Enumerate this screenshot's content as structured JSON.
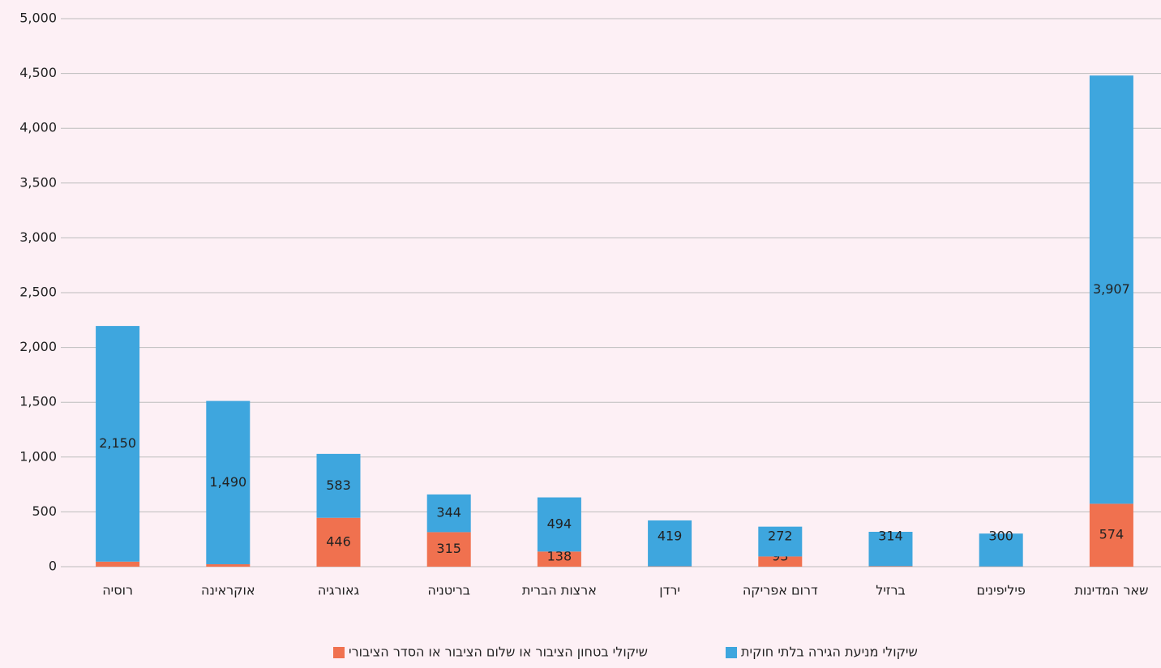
{
  "chart_data": {
    "type": "stacked_bar",
    "categories": [
      "רוסיה",
      "אוקראינה",
      "גאורגיה",
      "בריטניה",
      "ארצות הברית",
      "ירדן",
      "דרום אפריקה",
      "ברזיל",
      "פיליפינים",
      "שאר המדינות"
    ],
    "series": [
      {
        "name": "שיקולי בטחון הציבור או שלום הציבור או הסדר הציבורי",
        "color": "#f0714f",
        "values": [
          46,
          22,
          446,
          315,
          138,
          3,
          93,
          4,
          2,
          574
        ]
      },
      {
        "name": "שיקולי מניעת הגירה בלתי חוקית",
        "color": "#3ea6de",
        "values": [
          2150,
          1490,
          583,
          344,
          494,
          419,
          272,
          314,
          300,
          3907
        ],
        "value_labels": [
          "2,150",
          "1,490",
          "583",
          "344",
          "494",
          "419",
          "272",
          "314",
          "300",
          "3,907"
        ]
      }
    ],
    "ylim": [
      0,
      5000
    ],
    "yticks": [
      0,
      500,
      {
        "value": 1000,
        "label": "1,000"
      },
      {
        "value": 1500,
        "label": "1,500"
      },
      {
        "value": 2000,
        "label": "2,000"
      },
      {
        "value": 2500,
        "label": "2,500"
      },
      {
        "value": 3000,
        "label": "3,000"
      },
      {
        "value": 3500,
        "label": "3,500"
      },
      {
        "value": 4000,
        "label": "4,000"
      },
      {
        "value": 4500,
        "label": "4,500"
      },
      {
        "value": 5000,
        "label": "5,000"
      }
    ],
    "grid": true,
    "legend": "bottom"
  }
}
